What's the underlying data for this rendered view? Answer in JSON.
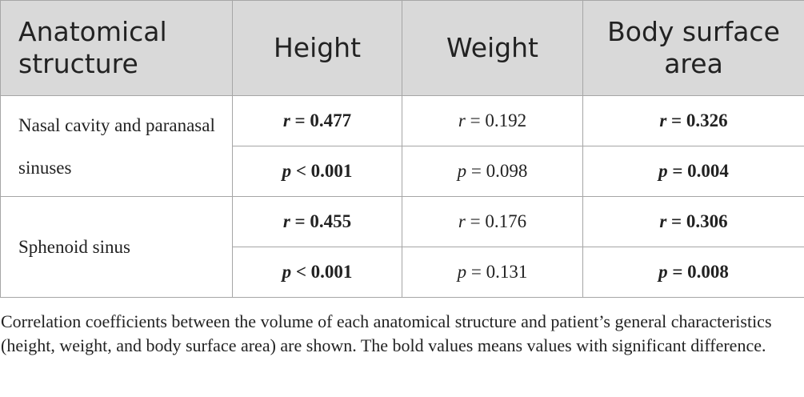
{
  "table": {
    "header": [
      "Anatomical structure",
      "Height",
      "Weight",
      "Body surface area"
    ],
    "rows": [
      {
        "structure": "Nasal cavity and paranasal sinuses",
        "stats": [
          [
            {
              "symbol": "r",
              "operator": "=",
              "value": "0.477",
              "bold": true
            },
            {
              "symbol": "r",
              "operator": "=",
              "value": "0.192",
              "bold": false
            },
            {
              "symbol": "r",
              "operator": "=",
              "value": "0.326",
              "bold": true
            }
          ],
          [
            {
              "symbol": "p",
              "operator": "<",
              "value": "0.001",
              "bold": true
            },
            {
              "symbol": "p",
              "operator": "=",
              "value": "0.098",
              "bold": false
            },
            {
              "symbol": "p",
              "operator": "=",
              "value": "0.004",
              "bold": true
            }
          ]
        ]
      },
      {
        "structure": "Sphenoid sinus",
        "stats": [
          [
            {
              "symbol": "r",
              "operator": "=",
              "value": "0.455",
              "bold": true
            },
            {
              "symbol": "r",
              "operator": "=",
              "value": "0.176",
              "bold": false
            },
            {
              "symbol": "r",
              "operator": "=",
              "value": "0.306",
              "bold": true
            }
          ],
          [
            {
              "symbol": "p",
              "operator": "<",
              "value": "0.001",
              "bold": true
            },
            {
              "symbol": "p",
              "operator": "=",
              "value": "0.131",
              "bold": false
            },
            {
              "symbol": "p",
              "operator": "=",
              "value": "0.008",
              "bold": true
            }
          ]
        ]
      }
    ],
    "caption": "Correlation coefficients between the volume of each anatomical structure and patient’s general characteristics (height, weight, and body surface area) are shown. The bold values means values with significant difference."
  }
}
